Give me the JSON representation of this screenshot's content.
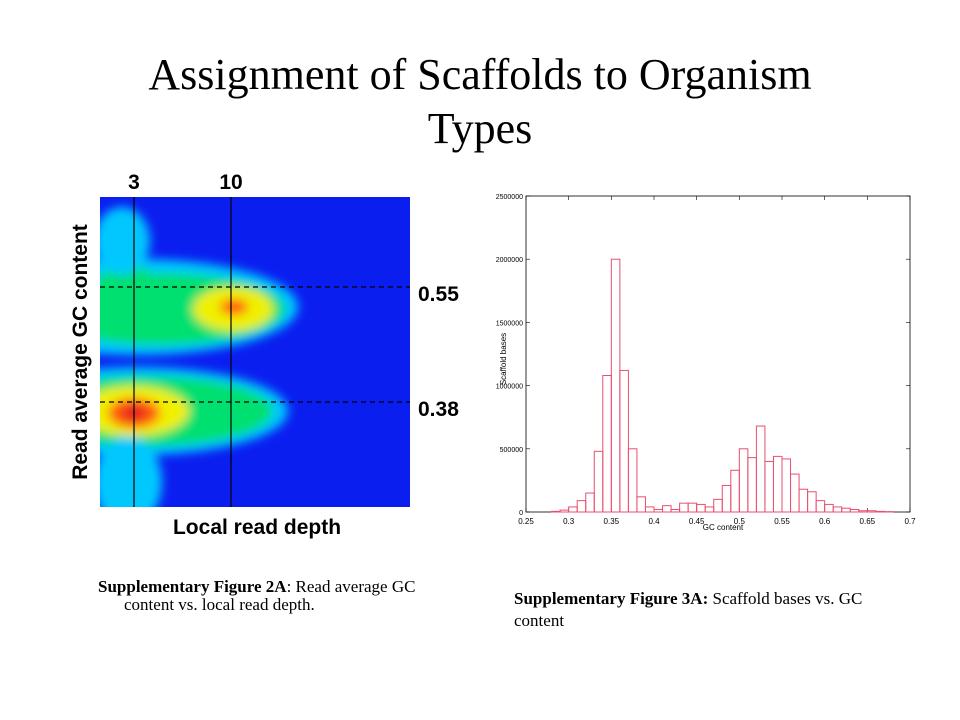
{
  "slide": {
    "title_line1": "Assignment of Scaffolds to Organism",
    "title_line2": "Types"
  },
  "captions": {
    "fig2a_bold": "Supplementary Figure 2A",
    "fig2a_text": ": Read average GC content vs. local read depth.",
    "fig3a_bold": "Supplementary Figure 3A:",
    "fig3a_text": " Scaffold bases vs. GC content"
  },
  "chart_data": [
    {
      "type": "heatmap",
      "xlabel": "Local read depth",
      "ylabel": "Read average GC content",
      "colormap": [
        "#0a1ef0",
        "#00c8ff",
        "#00e070",
        "#f0f000",
        "#ff5a10",
        "#e01020"
      ],
      "background_color": "#0a1ef0",
      "vertical_markers": [
        {
          "label": "3",
          "value": 3
        },
        {
          "label": "10",
          "value": 10
        }
      ],
      "horizontal_markers": [
        {
          "label": "0.55",
          "value": 0.55
        },
        {
          "label": "0.38",
          "value": 0.38
        }
      ],
      "grid": false
    },
    {
      "type": "bar",
      "subtype": "histogram",
      "xlabel": "GC content",
      "ylabel": "Scaffold bases",
      "xlim": [
        0.25,
        0.7
      ],
      "ylim": [
        0,
        2500000
      ],
      "xticks": [
        "0.25",
        "0.3",
        "0.35",
        "0.4",
        "0.45",
        "0.5",
        "0.55",
        "0.6",
        "0.65",
        "0.7"
      ],
      "yticks": [
        "0",
        "500000",
        "1000000",
        "1500000",
        "2000000",
        "2500000"
      ],
      "bar_color": "#e8506e",
      "bin_width": 0.01,
      "bins": [
        0.28,
        0.29,
        0.3,
        0.31,
        0.32,
        0.33,
        0.34,
        0.35,
        0.36,
        0.37,
        0.38,
        0.39,
        0.4,
        0.41,
        0.42,
        0.43,
        0.44,
        0.45,
        0.46,
        0.47,
        0.48,
        0.49,
        0.5,
        0.51,
        0.52,
        0.53,
        0.54,
        0.55,
        0.56,
        0.57,
        0.58,
        0.59,
        0.6,
        0.61,
        0.62,
        0.63,
        0.64,
        0.65,
        0.66,
        0.67
      ],
      "values": [
        5000,
        15000,
        40000,
        90000,
        150000,
        480000,
        1080000,
        2000000,
        1120000,
        500000,
        120000,
        40000,
        20000,
        50000,
        20000,
        70000,
        70000,
        60000,
        40000,
        100000,
        210000,
        330000,
        500000,
        430000,
        680000,
        400000,
        440000,
        420000,
        300000,
        180000,
        160000,
        90000,
        60000,
        40000,
        30000,
        20000,
        10000,
        10000,
        5000,
        3000
      ],
      "grid": false
    }
  ]
}
